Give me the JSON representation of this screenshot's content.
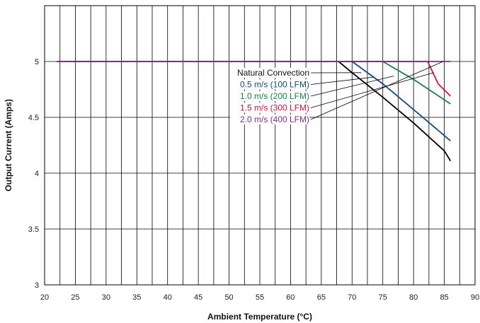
{
  "chart_data": {
    "type": "line",
    "title": "",
    "xlabel": "Ambient Temperature (°C)",
    "ylabel": "Output Current (Amps)",
    "xlim": [
      20,
      90
    ],
    "ylim": [
      3,
      5.5
    ],
    "x_ticks": [
      20,
      25,
      30,
      35,
      40,
      45,
      50,
      55,
      60,
      65,
      70,
      75,
      80,
      85,
      90
    ],
    "y_ticks": [
      3,
      3.5,
      4,
      4.5,
      5
    ],
    "x_tick_labels": [
      "20",
      "25",
      "30",
      "35",
      "40",
      "45",
      "50",
      "55",
      "60",
      "65",
      "70",
      "75",
      "80",
      "85",
      "90"
    ],
    "y_tick_labels": [
      "3",
      "3.5",
      "4",
      "4.5",
      "5"
    ],
    "grid": true,
    "legend_placement": "center-right",
    "series": [
      {
        "name": "Natural Convection",
        "color": "#000000",
        "x": [
          22,
          67.8,
          70,
          75,
          80,
          85,
          86
        ],
        "y": [
          5,
          5,
          4.9,
          4.68,
          4.45,
          4.2,
          4.11
        ]
      },
      {
        "name": "0.5 m/s (100 LFM)",
        "color": "#0e4a8a",
        "x": [
          22,
          70,
          75,
          80,
          86
        ],
        "y": [
          5,
          5,
          4.8,
          4.57,
          4.29
        ]
      },
      {
        "name": "1.0 m/s (200 LFM)",
        "color": "#0f8a3c",
        "x": [
          22,
          75,
          80,
          86
        ],
        "y": [
          5,
          5,
          4.84,
          4.62
        ]
      },
      {
        "name": "1.5 m/s (300 LFM)",
        "color": "#e0103a",
        "x": [
          22,
          82.3,
          84,
          86
        ],
        "y": [
          5,
          5,
          4.8,
          4.69
        ]
      },
      {
        "name": "2.0 m/s (400 LFM)",
        "color": "#7b2d8e",
        "x": [
          22,
          86
        ],
        "y": [
          5,
          5
        ]
      }
    ]
  }
}
